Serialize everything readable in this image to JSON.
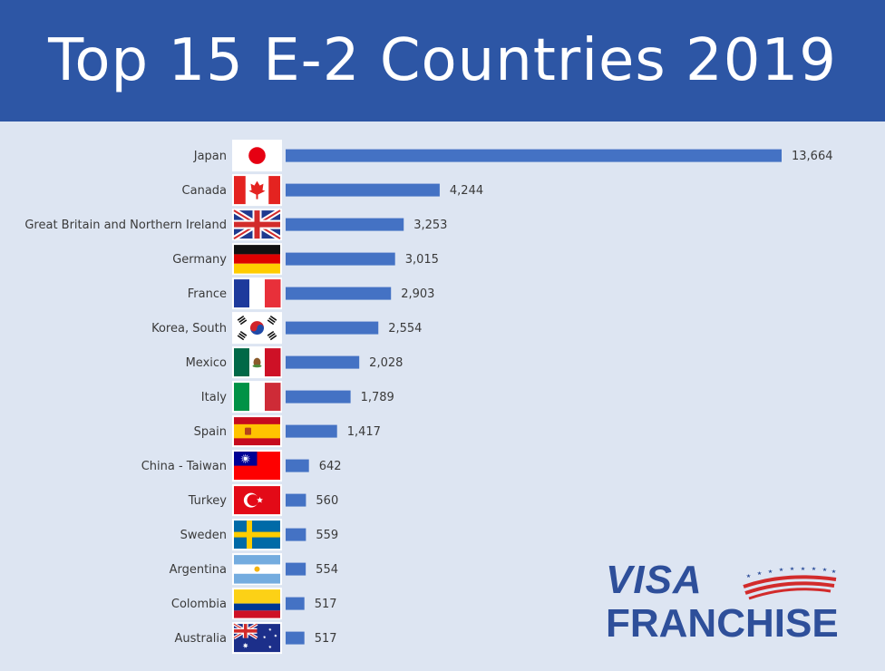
{
  "title": "Top 15 E-2 Countries 2019",
  "colors": {
    "header_bg": "#2d56a5",
    "bar": "#4472c4",
    "background": "#dde5f2",
    "label": "#3a3a3a"
  },
  "logo": {
    "line1": "VISA",
    "line2": "FRANCHISE"
  },
  "chart_data": {
    "type": "bar",
    "orientation": "horizontal",
    "title": "Top 15 E-2 Countries 2019",
    "categories": [
      "Japan",
      "Canada",
      "Great Britain and Northern Ireland",
      "Germany",
      "France",
      "Korea, South",
      "Mexico",
      "Italy",
      "Spain",
      "China - Taiwan",
      "Turkey",
      "Sweden",
      "Argentina",
      "Colombia",
      "Australia"
    ],
    "flags": [
      "japan-flag",
      "canada-flag",
      "uk-flag",
      "germany-flag",
      "france-flag",
      "south-korea-flag",
      "mexico-flag",
      "italy-flag",
      "spain-flag",
      "taiwan-flag",
      "turkey-flag",
      "sweden-flag",
      "argentina-flag",
      "colombia-flag",
      "australia-flag"
    ],
    "values": [
      13664,
      4244,
      3253,
      3015,
      2903,
      2554,
      2028,
      1789,
      1417,
      642,
      560,
      559,
      554,
      517,
      517
    ],
    "value_labels": [
      "13,664",
      "4,244",
      "3,253",
      "3,015",
      "2,903",
      "2,554",
      "2,028",
      "1,789",
      "1,417",
      "642",
      "560",
      "559",
      "554",
      "517",
      "517"
    ],
    "xlim": [
      0,
      13664
    ],
    "grid": false,
    "legend": "none"
  }
}
